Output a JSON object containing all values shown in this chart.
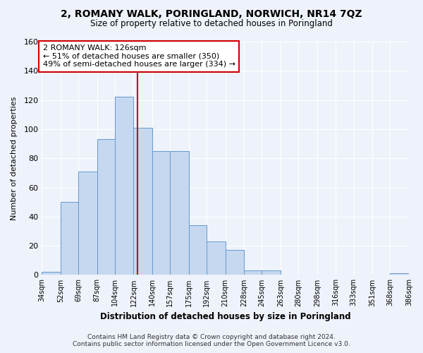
{
  "title": "2, ROMANY WALK, PORINGLAND, NORWICH, NR14 7QZ",
  "subtitle": "Size of property relative to detached houses in Poringland",
  "xlabel": "Distribution of detached houses by size in Poringland",
  "ylabel": "Number of detached properties",
  "bar_color": "#c5d8f0",
  "bar_edge_color": "#6699cc",
  "vline_x": 126,
  "vline_color": "#cc0000",
  "annotation_title": "2 ROMANY WALK: 126sqm",
  "annotation_line1": "← 51% of detached houses are smaller (350)",
  "annotation_line2": "49% of semi-detached houses are larger (334) →",
  "bin_edges": [
    34,
    52,
    69,
    87,
    104,
    122,
    140,
    157,
    175,
    192,
    210,
    228,
    245,
    263,
    280,
    298,
    316,
    333,
    351,
    368,
    386
  ],
  "bin_counts": [
    2,
    50,
    71,
    93,
    122,
    101,
    85,
    85,
    34,
    23,
    17,
    3,
    3,
    0,
    0,
    0,
    0,
    0,
    0,
    1
  ],
  "ylim": [
    0,
    160
  ],
  "yticks": [
    0,
    20,
    40,
    60,
    80,
    100,
    120,
    140,
    160
  ],
  "footer_line1": "Contains HM Land Registry data © Crown copyright and database right 2024.",
  "footer_line2": "Contains public sector information licensed under the Open Government Licence v3.0.",
  "background_color": "#eef2fa",
  "plot_background": "#eef2fa",
  "grid_color": "#ffffff"
}
